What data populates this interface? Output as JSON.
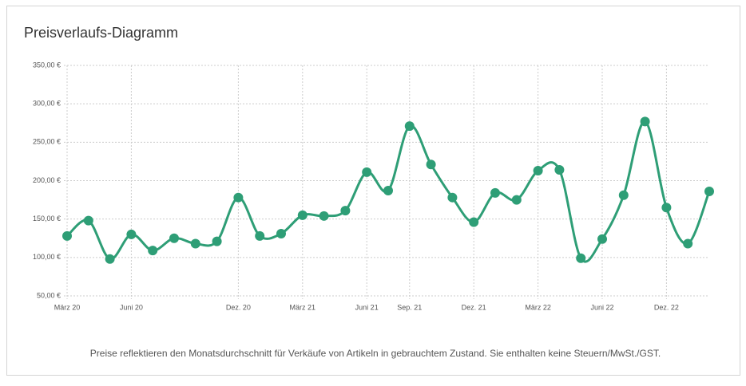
{
  "chart_data": {
    "type": "line",
    "title": "Preisverlaufs-Diagramm",
    "note": "Preise reflektieren den Monatsdurchschnitt für Verkäufe von Artikeln in gebrauchtem Zustand. Sie enthalten keine Steuern/MwSt./GST.",
    "categories": [
      "März 20",
      null,
      null,
      "Juni 20",
      null,
      null,
      null,
      null,
      "Dez. 20",
      null,
      null,
      "März 21",
      null,
      null,
      "Juni 21",
      null,
      "Sep. 21",
      null,
      null,
      "Dez. 21",
      null,
      null,
      "März 22",
      null,
      null,
      "Juni 22",
      null,
      null,
      "Dez. 22",
      null,
      null
    ],
    "values": [
      128,
      148,
      98,
      130,
      109,
      125,
      118,
      121,
      178,
      128,
      131,
      155,
      154,
      161,
      211,
      187,
      271,
      221,
      178,
      146,
      184,
      175,
      213,
      214,
      99,
      124,
      181,
      277,
      165,
      118,
      186
    ],
    "color": "#2e9e76",
    "ylim": [
      50,
      350
    ],
    "yticks": [
      {
        "value": 50,
        "label": "50,00 €"
      },
      {
        "value": 100,
        "label": "100,00 €"
      },
      {
        "value": 150,
        "label": "150,00 €"
      },
      {
        "value": 200,
        "label": "200,00 €"
      },
      {
        "value": 250,
        "label": "250,00 €"
      },
      {
        "value": 300,
        "label": "300,00 €"
      },
      {
        "value": 350,
        "label": "350,00 €"
      }
    ],
    "grid": true
  }
}
